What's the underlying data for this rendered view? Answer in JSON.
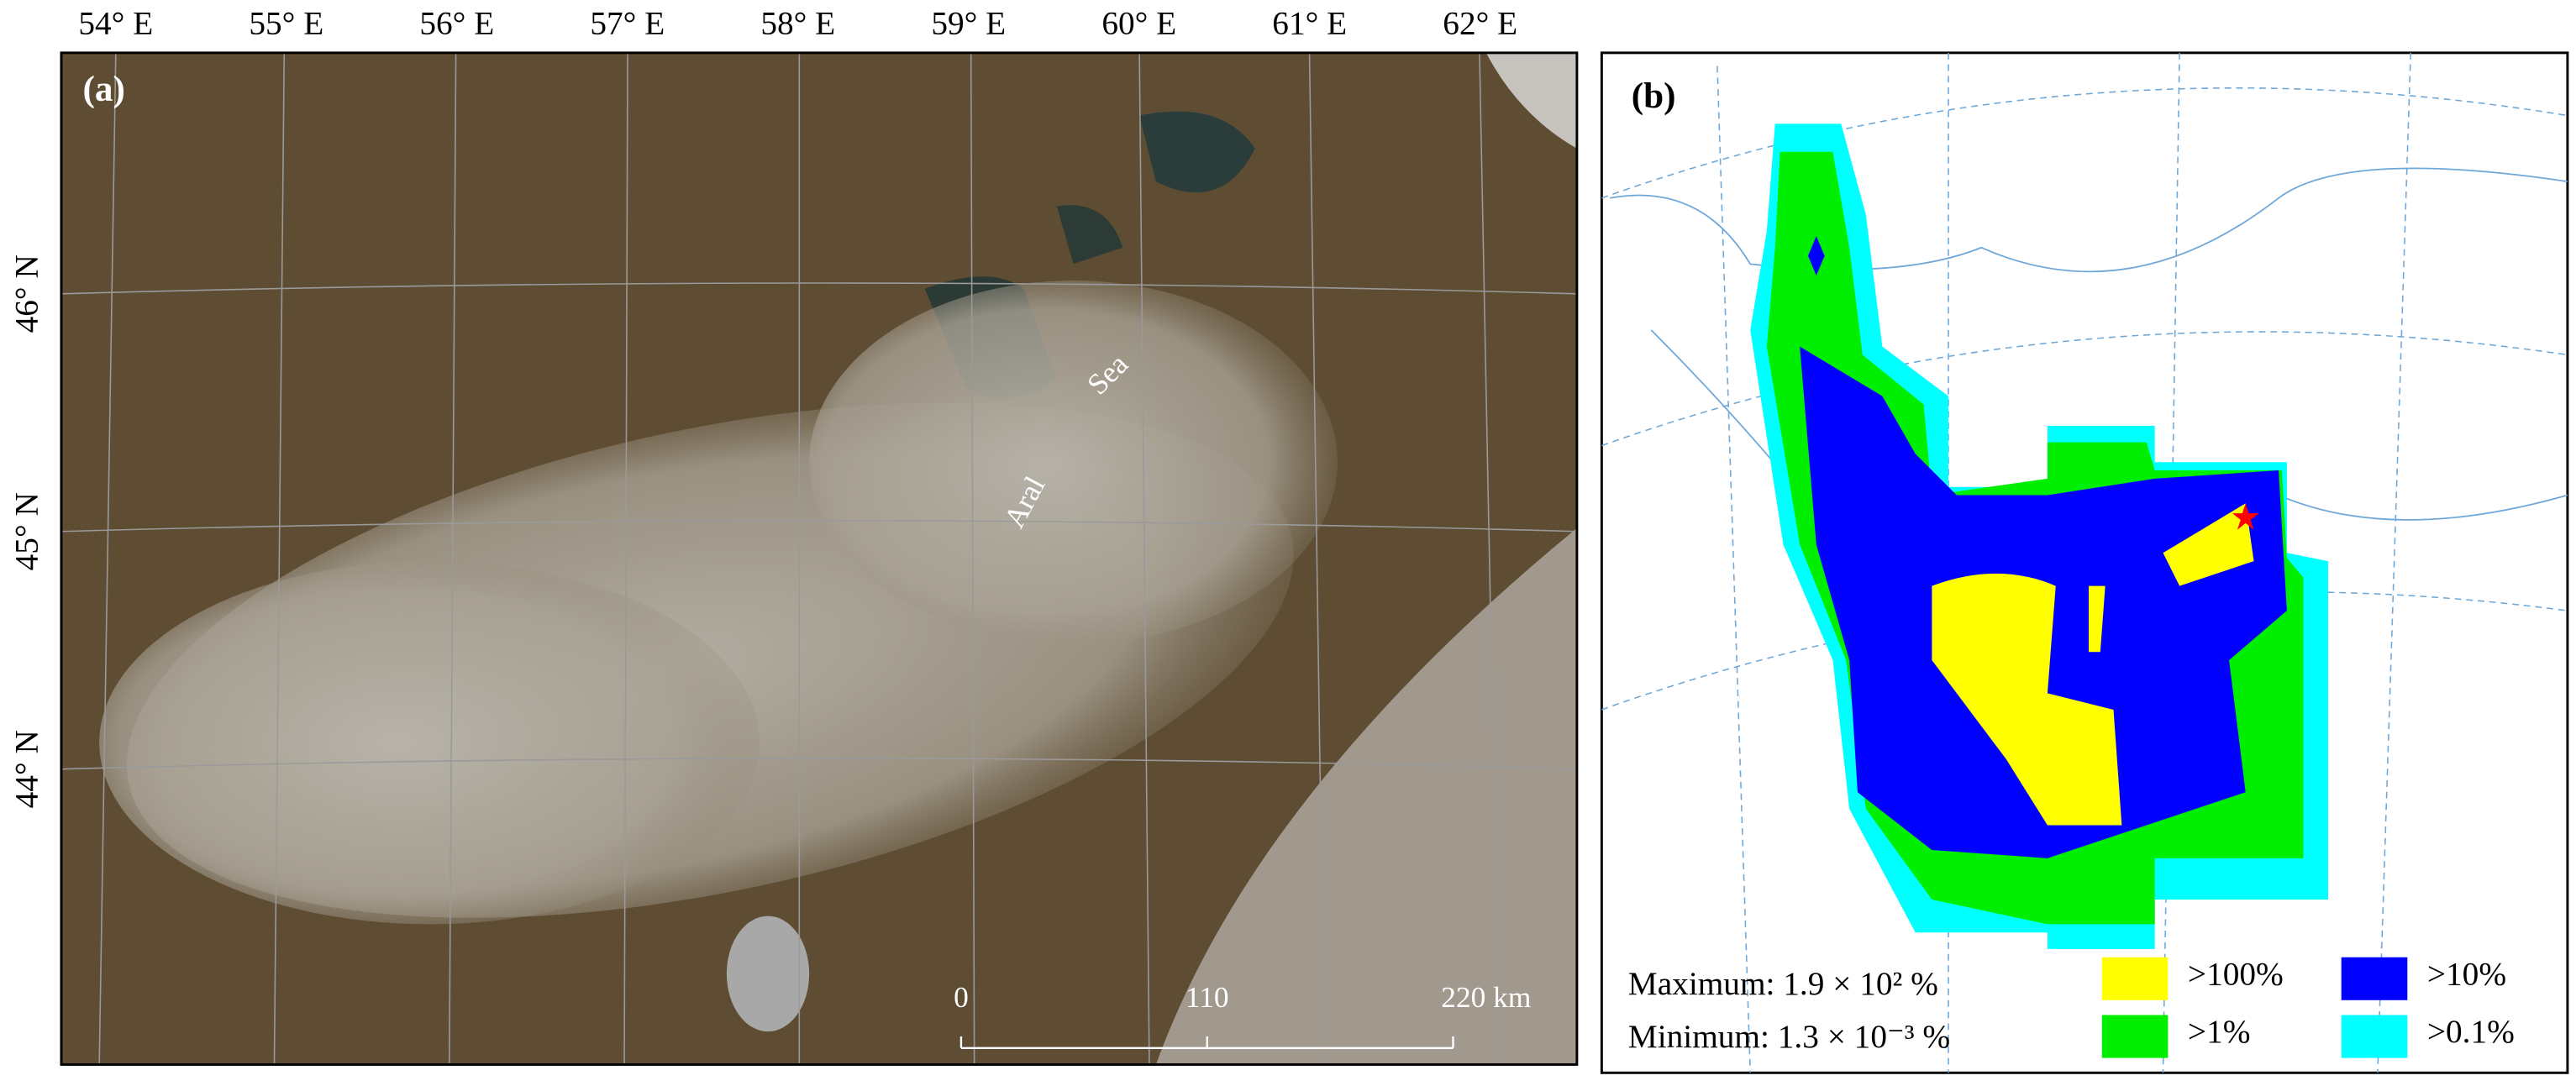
{
  "panel_a": {
    "label": "(a)",
    "lon_labels": [
      "54° E",
      "55° E",
      "56° E",
      "57° E",
      "58° E",
      "59° E",
      "60° E",
      "61° E",
      "62° E"
    ],
    "lat_labels": [
      "46° N",
      "45° N",
      "44° N"
    ],
    "place_labels": [
      "Aral",
      "Sea"
    ],
    "scale_bar": [
      "0",
      "110",
      "220 km"
    ]
  },
  "panel_b": {
    "label": "(b)",
    "maximum": "Maximum: 1.9 × 10² %",
    "minimum": "Minimum: 1.3 × 10⁻³ %",
    "legend": [
      {
        "label": ">100%",
        "color": "#ffff00"
      },
      {
        "label": ">10%",
        "color": "#0000ff"
      },
      {
        "label": ">1%",
        "color": "#00ee00"
      },
      {
        "label": ">0.1%",
        "color": "#00ffff"
      }
    ]
  }
}
